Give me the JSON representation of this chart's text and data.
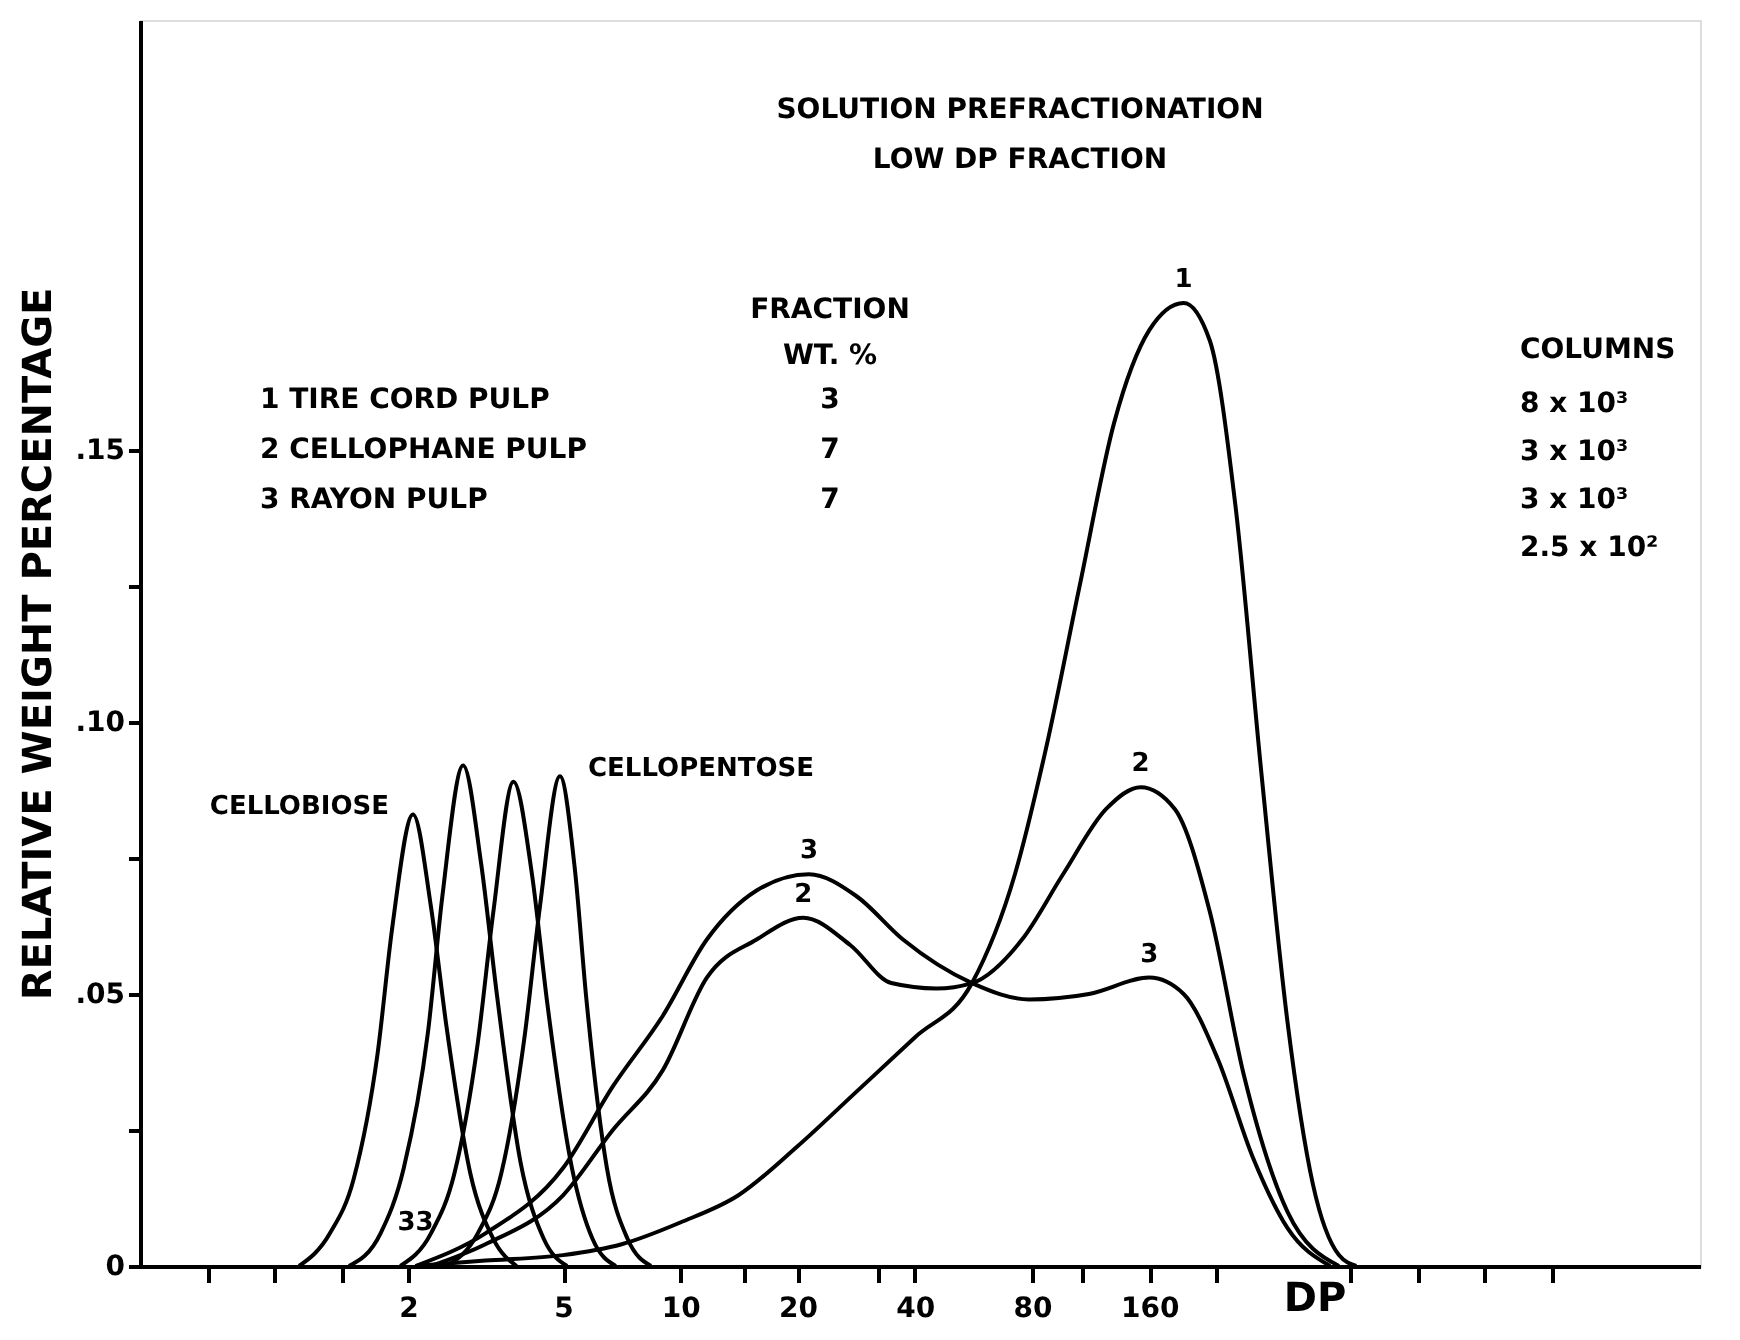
{
  "chart_data": {
    "type": "line",
    "title": "SOLUTION PREFRACTIONATION",
    "subtitle": "LOW DP FRACTION",
    "xlabel": "DP",
    "ylabel": "RELATIVE WEIGHT PERCENTAGE",
    "log": "x",
    "xlim": [
      0.41,
      4150
    ],
    "ylim": [
      0,
      0.229
    ],
    "xticks": [
      {
        "value": 0.61,
        "label": null
      },
      {
        "value": 0.91,
        "label": null
      },
      {
        "value": 1.35,
        "label": null
      },
      2,
      5,
      10,
      {
        "value": 14.6,
        "label": null
      },
      20,
      {
        "value": 32,
        "label": null
      },
      40,
      80,
      {
        "value": 107,
        "label": null
      },
      160,
      {
        "value": 238,
        "label": null
      },
      {
        "value": 525,
        "label": null
      },
      {
        "value": 782,
        "label": null
      },
      {
        "value": 1162,
        "label": null
      },
      {
        "value": 1730,
        "label": null
      }
    ],
    "yticks": [
      {
        "value": 0,
        "label": "0"
      },
      {
        "value": 0.025,
        "label": null
      },
      {
        "value": 0.05,
        "label": ".05"
      },
      {
        "value": 0.075,
        "label": null
      },
      {
        "value": 0.1,
        "label": ".10"
      },
      {
        "value": 0.125,
        "label": null
      },
      {
        "value": 0.15,
        "label": ".15"
      }
    ],
    "grid": false,
    "marker": "none",
    "line_style": "solid",
    "series": [
      {
        "color": "#000000",
        "x": [
          1.05,
          1.26,
          1.45,
          1.67,
          1.82,
          2.06,
          2.29,
          2.51,
          2.89,
          3.31,
          3.8
        ],
        "values": [
          0.0,
          0.006,
          0.016,
          0.039,
          0.062,
          0.083,
          0.066,
          0.044,
          0.017,
          0.005,
          0.0
        ]
      },
      {
        "color": "#000000",
        "x": [
          1.41,
          1.7,
          1.95,
          2.25,
          2.45,
          2.77,
          3.08,
          3.38,
          3.89,
          4.46,
          5.12
        ],
        "values": [
          0.0,
          0.006,
          0.018,
          0.043,
          0.068,
          0.092,
          0.074,
          0.05,
          0.019,
          0.005,
          0.0
        ]
      },
      {
        "color": "#000000",
        "x": [
          1.91,
          2.29,
          2.63,
          3.02,
          3.31,
          3.73,
          4.16,
          4.56,
          5.27,
          5.95,
          6.83
        ],
        "values": [
          0.0,
          0.006,
          0.017,
          0.041,
          0.065,
          0.089,
          0.072,
          0.048,
          0.018,
          0.005,
          0.0
        ]
      },
      {
        "color": "#000000",
        "x": [
          2.51,
          3.02,
          3.47,
          3.98,
          4.36,
          4.91,
          5.36,
          5.74,
          6.48,
          7.32,
          8.41
        ],
        "values": [
          0.0,
          0.006,
          0.017,
          0.042,
          0.066,
          0.09,
          0.073,
          0.049,
          0.018,
          0.005,
          0.0
        ]
      },
      {
        "color": "#000000",
        "x": [
          2.09,
          3.16,
          5,
          7.07,
          10,
          14.1,
          20,
          28.3,
          40,
          56.1,
          72.3,
          86.8,
          106,
          130,
          160,
          196,
          229,
          266,
          311,
          362,
          421,
          491,
          544
        ],
        "values": [
          0.0,
          0.001,
          0.002,
          0.004,
          0.008,
          0.013,
          0.022,
          0.032,
          0.042,
          0.052,
          0.072,
          0.095,
          0.125,
          0.155,
          0.172,
          0.177,
          0.17,
          0.14,
          0.09,
          0.045,
          0.015,
          0.002,
          0.0
        ]
      },
      {
        "color": "#000000",
        "x": [
          2.29,
          3.16,
          5,
          6.71,
          9.02,
          11.7,
          15.7,
          20.7,
          27.3,
          34.8,
          45.4,
          56.1,
          75.4,
          96.1,
          124,
          152,
          186,
          229,
          280,
          362,
          491
        ],
        "values": [
          0.0,
          0.004,
          0.013,
          0.025,
          0.036,
          0.053,
          0.06,
          0.064,
          0.059,
          0.052,
          0.051,
          0.052,
          0.06,
          0.072,
          0.084,
          0.088,
          0.084,
          0.065,
          0.035,
          0.01,
          0.0
        ]
      },
      {
        "color": "#000000",
        "x": [
          2.09,
          3.16,
          5,
          6.71,
          9.02,
          11.7,
          15.7,
          21.4,
          28.3,
          37.3,
          56.1,
          78.6,
          112,
          160,
          196,
          240,
          295,
          362,
          466
        ],
        "values": [
          0.0,
          0.006,
          0.018,
          0.033,
          0.046,
          0.06,
          0.069,
          0.072,
          0.068,
          0.06,
          0.052,
          0.049,
          0.05,
          0.053,
          0.05,
          0.038,
          0.02,
          0.007,
          0.0
        ]
      }
    ],
    "annotations": [
      {
        "text": "CELLOBIOSE",
        "x": 2.06,
        "y": 0.083
      },
      {
        "text": "CELLOPENTOSE",
        "x": 4.91,
        "y": 0.09
      },
      {
        "text": "1",
        "x": 196,
        "y": 0.177
      },
      {
        "text": "2",
        "x": 152,
        "y": 0.088
      },
      {
        "text": "3",
        "x": 160,
        "y": 0.053
      },
      {
        "text": "3",
        "x": 21.4,
        "y": 0.072
      },
      {
        "text": "2",
        "x": 20.7,
        "y": 0.064
      },
      {
        "text": "33",
        "x": 2.09,
        "y": 0.0
      },
      "FRACTION",
      "WT. %",
      "1  TIRE CORD PULP",
      "3",
      "2  CELLOPHANE PULP",
      "7",
      "3  RAYON PULP",
      "7",
      "COLUMNS",
      "8 x 10³",
      "3 x 10³",
      "3 x 10³",
      "2.5 x 10²"
    ]
  }
}
